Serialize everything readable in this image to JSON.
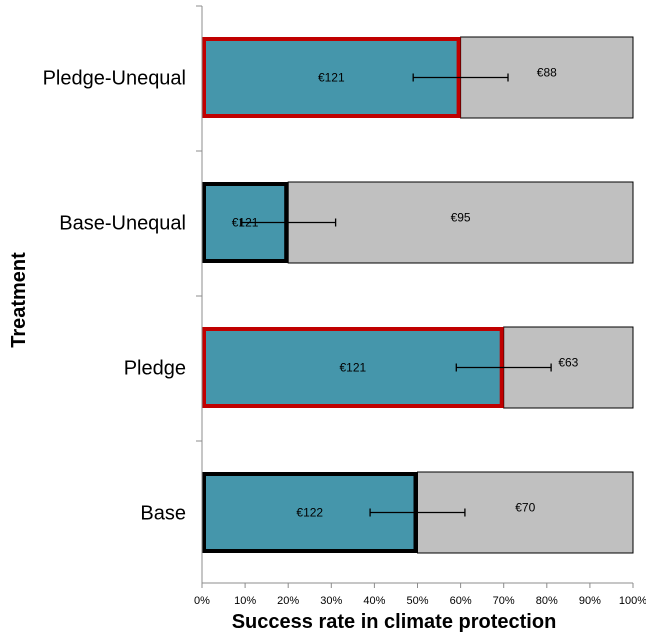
{
  "chart_data": {
    "type": "bar",
    "orientation": "horizontal",
    "stacked_to": 100,
    "title": "",
    "xlabel": "Success rate in climate protection",
    "ylabel": "Treatment",
    "xlim": [
      0,
      100
    ],
    "x_ticks": [
      0,
      10,
      20,
      30,
      40,
      50,
      60,
      70,
      80,
      90,
      100
    ],
    "x_tick_labels": [
      "0%",
      "10%",
      "20%",
      "30%",
      "40%",
      "50%",
      "60%",
      "70%",
      "80%",
      "90%",
      "100%"
    ],
    "categories": [
      "Pledge-Unequal",
      "Base-Unequal",
      "Pledge",
      "Base"
    ],
    "series": [
      {
        "values": [
          60,
          20,
          70,
          50
        ],
        "labels": [
          "€121",
          "€121",
          "€121",
          "€122"
        ],
        "color": "#4596ab",
        "outline_colors": [
          "#c00000",
          "#000000",
          "#c00000",
          "#000000"
        ],
        "error_low": [
          49,
          9,
          59,
          39
        ],
        "error_high": [
          71,
          31,
          81,
          61
        ]
      },
      {
        "values": [
          40,
          80,
          30,
          50
        ],
        "labels": [
          "€88",
          "€95",
          "€63",
          "€70"
        ],
        "color": "#c0c0c0"
      }
    ],
    "grid": false,
    "legend": "none"
  }
}
